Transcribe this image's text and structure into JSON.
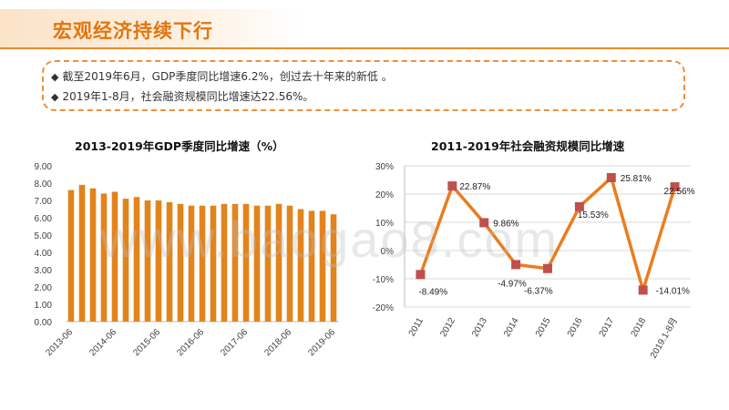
{
  "header": {
    "title": "宏观经济持续下行"
  },
  "notes": {
    "bullet": "◆",
    "line1": "截至2019年6月，GDP季度同比增速6.2%，创过去十年来的新低 。",
    "line2": "2019年1-8月，社会融资规模同比增速达22.56%。"
  },
  "watermark": "www.baogao8.com",
  "colors": {
    "bar": "#e2841c",
    "line": "#ea7d1f",
    "marker": "#c0504d",
    "grid": "#d9d9d9"
  },
  "chart_data": [
    {
      "type": "bar",
      "title": "2013-2019年GDP季度同比增速（%）",
      "xlabel": "",
      "ylabel": "",
      "ylim": [
        0,
        9
      ],
      "yticks": [
        "0.00",
        "1.00",
        "2.00",
        "3.00",
        "4.00",
        "5.00",
        "6.00",
        "7.00",
        "8.00",
        "9.00"
      ],
      "x_tick_labels": [
        "2013-06",
        "2014-06",
        "2015-06",
        "2016-06",
        "2017-06",
        "2018-06",
        "2019-06"
      ],
      "categories": [
        "2013Q2",
        "2013Q3",
        "2013Q4",
        "2014Q1",
        "2014Q2",
        "2014Q3",
        "2014Q4",
        "2015Q1",
        "2015Q2",
        "2015Q3",
        "2015Q4",
        "2016Q1",
        "2016Q2",
        "2016Q3",
        "2016Q4",
        "2017Q1",
        "2017Q2",
        "2017Q3",
        "2017Q4",
        "2018Q1",
        "2018Q2",
        "2018Q3",
        "2018Q4",
        "2019Q1",
        "2019Q2"
      ],
      "values": [
        7.6,
        7.9,
        7.7,
        7.4,
        7.5,
        7.1,
        7.2,
        7.0,
        7.0,
        6.9,
        6.8,
        6.7,
        6.7,
        6.7,
        6.8,
        6.8,
        6.8,
        6.7,
        6.7,
        6.8,
        6.7,
        6.5,
        6.4,
        6.4,
        6.2
      ],
      "grid": false
    },
    {
      "type": "line",
      "title": "2011-2019年社会融资规模同比增速",
      "xlabel": "",
      "ylabel": "",
      "ylim": [
        -20,
        30
      ],
      "yticks": [
        "-20%",
        "-10%",
        "0%",
        "10%",
        "20%",
        "30%"
      ],
      "categories": [
        "2011",
        "2012",
        "2013",
        "2014",
        "2015",
        "2016",
        "2017",
        "2018",
        "2019.1-8月"
      ],
      "values": [
        -8.49,
        22.87,
        9.86,
        -4.97,
        -6.37,
        15.53,
        25.81,
        -14.01,
        22.56
      ],
      "labels": [
        "-8.49%",
        "22.87%",
        "9.86%",
        "-4.97%",
        "-6.37%",
        "15.53%",
        "25.81%",
        "-14.01%",
        "22.56%"
      ],
      "grid": true
    }
  ]
}
